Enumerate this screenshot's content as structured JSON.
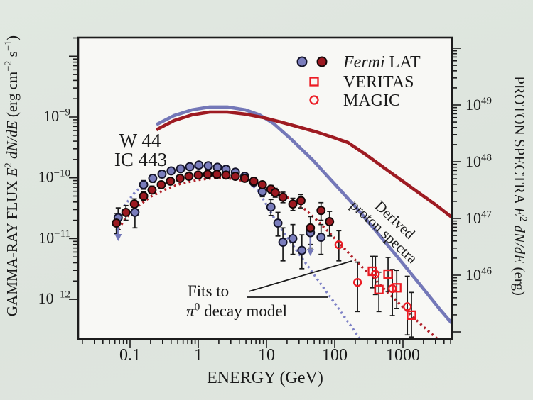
{
  "figure": {
    "kind": "scientific-spectra-figure",
    "colors": {
      "background": "#dee5de",
      "plot_background": "#f8f8f5",
      "frame": "#1c1c1c",
      "w44_blue": "#7478b8",
      "w44_blue_fill": "#7a7dbc",
      "w44_blue_text": "#6b70b2",
      "w44_dotted": "#7d81c6",
      "ic443_red": "#9e1b22",
      "ic443_red_fill": "#9c1920",
      "ic443_red_text": "#b2242b",
      "ic443_dotted": "#b01f28",
      "bright_red": "#ec1c24",
      "error_bar": "#1a1a1a"
    }
  },
  "axes": {
    "x": {
      "title": "ENERGY (GeV)",
      "scale": "log",
      "tick_labels": [
        "0.1",
        "1",
        "10",
        "100",
        "1000"
      ],
      "tick_values": [
        0.1,
        1,
        10,
        100,
        1000
      ],
      "range_gev": [
        0.017,
        5200
      ]
    },
    "y_left": {
      "title_segments": [
        {
          "t": "GAMMA-RAY FLUX "
        },
        {
          "t": "E",
          "i": true
        },
        {
          "t": "2",
          "sup": true
        },
        {
          "t": " "
        },
        {
          "t": "dN",
          "i": true
        },
        {
          "t": "/",
          "i": true
        },
        {
          "t": "dE",
          "i": true
        },
        {
          "t": " (erg cm"
        },
        {
          "t": "−2",
          "sup": true
        },
        {
          "t": " s"
        },
        {
          "t": "−1",
          "sup": true
        },
        {
          "t": ")"
        }
      ],
      "scale": "log",
      "ticks": [
        {
          "base": "10",
          "exp": "−9",
          "value": 1e-09
        },
        {
          "base": "10",
          "exp": "−10",
          "value": 1e-10
        },
        {
          "base": "10",
          "exp": "−11",
          "value": 1e-11
        },
        {
          "base": "10",
          "exp": "−12",
          "value": 1e-12
        }
      ]
    },
    "y_right": {
      "title_segments": [
        {
          "t": "PROTON SPECTRA "
        },
        {
          "t": "E",
          "i": true
        },
        {
          "t": "2",
          "sup": true
        },
        {
          "t": " "
        },
        {
          "t": "dN",
          "i": true
        },
        {
          "t": "/",
          "i": true
        },
        {
          "t": "dE",
          "i": true
        },
        {
          "t": " (erg)"
        }
      ],
      "scale": "log",
      "ticks": [
        {
          "base": "10",
          "exp": "49",
          "value": 1e+49
        },
        {
          "base": "10",
          "exp": "48",
          "value": 1e+48
        },
        {
          "base": "10",
          "exp": "47",
          "value": 1e+47
        },
        {
          "base": "10",
          "exp": "46",
          "value": 1e+46
        }
      ]
    }
  },
  "legend": {
    "items": [
      {
        "id": "fermi-lat",
        "marker": "two-filled-circles",
        "label_segments": [
          {
            "t": "Fermi",
            "i": true
          },
          {
            "t": " LAT"
          }
        ]
      },
      {
        "id": "veritas",
        "marker": "open-square",
        "label_segments": [
          {
            "t": "VERITAS"
          }
        ]
      },
      {
        "id": "magic",
        "marker": "open-circle",
        "label_segments": [
          {
            "t": "MAGIC"
          }
        ]
      }
    ]
  },
  "annotations": {
    "w44_label": "W 44",
    "ic443_label": "IC 443",
    "derived_lines": [
      "Derived",
      "proton spectra"
    ],
    "fits_line1": "Fits to",
    "fits_line2_segments": [
      {
        "t": "π",
        "i": true
      },
      {
        "t": "0",
        "sup": true
      },
      {
        "t": " decay model"
      }
    ]
  },
  "chart_data": {
    "type": "scatter+line",
    "x_axis": "ENERGY (GeV), log scale 0.1–1000",
    "y_left_axis": "Gamma-ray flux E^2 dN/dE (erg cm^-2 s^-1), log 1e-12–1e-9",
    "y_right_axis": "Proton spectra E^2 dN/dE (erg), log 1e46–1e49",
    "series": [
      {
        "name": "W 44 (Fermi LAT)",
        "type": "scatter",
        "marker": "filled-circle",
        "axis": "left",
        "points": [
          [
            0.067,
            2.2e-11,
            1.4e-11,
            3.2e-11,
            "arrow"
          ],
          [
            0.118,
            2.7e-11,
            1.5e-11,
            3.6e-11,
            ""
          ],
          [
            0.158,
            7.7e-11,
            6.5e-11,
            9e-11,
            ""
          ],
          [
            0.215,
            9.8e-11,
            8.4e-11,
            1.1e-10,
            ""
          ],
          [
            0.294,
            1.15e-10,
            1e-10,
            1.3e-10,
            ""
          ],
          [
            0.4,
            1.3e-10,
            1.15e-10,
            1.45e-10,
            ""
          ],
          [
            0.55,
            1.41e-10,
            1.28e-10,
            1.55e-10,
            ""
          ],
          [
            0.75,
            1.52e-10,
            1.4e-10,
            1.65e-10,
            ""
          ],
          [
            1.02,
            1.62e-10,
            1.5e-10,
            1.75e-10,
            ""
          ],
          [
            1.4,
            1.58e-10,
            1.45e-10,
            1.7e-10,
            ""
          ],
          [
            1.91,
            1.49e-10,
            1.37e-10,
            1.6e-10,
            ""
          ],
          [
            2.55,
            1.38e-10,
            1.26e-10,
            1.5e-10,
            ""
          ],
          [
            3.5,
            1.24e-10,
            1.12e-10,
            1.36e-10,
            ""
          ],
          [
            4.8,
            1.06e-10,
            9.5e-11,
            1.18e-10,
            ""
          ],
          [
            6.5,
            8.5e-11,
            7.4e-11,
            9.7e-11,
            ""
          ],
          [
            8.7,
            5.9e-11,
            4.9e-11,
            7e-11,
            ""
          ],
          [
            11.6,
            3.3e-11,
            2.4e-11,
            4.4e-11,
            ""
          ],
          [
            14.7,
            1.8e-11,
            1.1e-11,
            2.7e-11,
            ""
          ],
          [
            17.4,
            8.7e-12,
            4.3e-12,
            1.5e-11,
            ""
          ],
          [
            24.3,
            1e-11,
            5.5e-12,
            1.7e-11,
            ""
          ],
          [
            33,
            6.4e-12,
            3.2e-12,
            1.15e-11,
            ""
          ],
          [
            44,
            1.25e-11,
            7e-12,
            1.6e-11,
            "arrow"
          ],
          [
            63,
            1.05e-11,
            5.5e-12,
            1.7e-11,
            ""
          ]
        ]
      },
      {
        "name": "IC 443 (Fermi LAT)",
        "type": "scatter",
        "marker": "filled-circle",
        "axis": "left",
        "points": [
          [
            0.063,
            1.8e-11,
            1.2e-11,
            2.6e-11,
            ""
          ],
          [
            0.087,
            2.7e-11,
            2e-11,
            3.5e-11,
            ""
          ],
          [
            0.116,
            3.7e-11,
            3e-11,
            4.5e-11,
            ""
          ],
          [
            0.158,
            5e-11,
            4.2e-11,
            5.9e-11,
            ""
          ],
          [
            0.21,
            6.3e-11,
            5.5e-11,
            7.3e-11,
            ""
          ],
          [
            0.287,
            7.7e-11,
            6.8e-11,
            8.7e-11,
            ""
          ],
          [
            0.39,
            8.8e-11,
            7.9e-11,
            9.8e-11,
            ""
          ],
          [
            0.54,
            9.8e-11,
            8.8e-11,
            1.08e-10,
            ""
          ],
          [
            0.73,
            1.06e-10,
            9.6e-11,
            1.16e-10,
            ""
          ],
          [
            1.0,
            1.11e-10,
            1.01e-10,
            1.21e-10,
            ""
          ],
          [
            1.37,
            1.14e-10,
            1.04e-10,
            1.24e-10,
            ""
          ],
          [
            1.87,
            1.14e-10,
            1.04e-10,
            1.24e-10,
            ""
          ],
          [
            2.55,
            1.11e-10,
            1.01e-10,
            1.21e-10,
            ""
          ],
          [
            3.5,
            1.06e-10,
            9.6e-11,
            1.16e-10,
            ""
          ],
          [
            4.8,
            9.8e-11,
            8.8e-11,
            1.08e-10,
            ""
          ],
          [
            6.5,
            8.8e-11,
            7.8e-11,
            9.8e-11,
            ""
          ],
          [
            8.7,
            7.7e-11,
            6.7e-11,
            8.7e-11,
            ""
          ],
          [
            11.6,
            6.5e-11,
            5.6e-11,
            7.5e-11,
            ""
          ],
          [
            13.4,
            5.7e-11,
            4.8e-11,
            6.7e-11,
            ""
          ],
          [
            17.4,
            4.8e-11,
            3.9e-11,
            5.8e-11,
            ""
          ],
          [
            24.3,
            3.7e-11,
            2.9e-11,
            4.6e-11,
            ""
          ],
          [
            32,
            4.2e-11,
            3.2e-11,
            5.3e-11,
            ""
          ],
          [
            44,
            1.5e-11,
            8e-12,
            2.3e-11,
            ""
          ],
          [
            63,
            2.9e-11,
            2e-11,
            3.9e-11,
            ""
          ],
          [
            84,
            1.9e-11,
            1.1e-11,
            2.8e-11,
            ""
          ]
        ]
      },
      {
        "name": "IC 443 (VERITAS)",
        "type": "scatter",
        "marker": "open-square",
        "axis": "left",
        "points": [
          [
            357,
            2.9e-12,
            1.55e-12,
            5.1e-12,
            ""
          ],
          [
            444,
            1.45e-12,
            6.3e-13,
            2.8e-12,
            ""
          ],
          [
            605,
            2.6e-12,
            1.35e-12,
            4.9e-12,
            ""
          ],
          [
            810,
            1.55e-12,
            7.1e-13,
            3e-12,
            ""
          ],
          [
            1334,
            5.5e-13,
            2.4e-13,
            1.3e-12,
            ""
          ]
        ]
      },
      {
        "name": "IC 443 (MAGIC)",
        "type": "scatter",
        "marker": "open-circle",
        "axis": "left",
        "points": [
          [
            115,
            7.9e-12,
            4.3e-12,
            1.35e-11,
            ""
          ],
          [
            216,
            1.9e-12,
            6.3e-13,
            4.1e-12,
            ""
          ],
          [
            395,
            2.6e-12,
            1.2e-12,
            5.1e-12,
            ""
          ],
          [
            700,
            1.5e-12,
            5.4e-13,
            3.1e-12,
            ""
          ],
          [
            1160,
            7.6e-13,
            2.6e-13,
            2.4e-12,
            ""
          ]
        ]
      },
      {
        "name": "W 44 pi0-decay fit",
        "type": "line",
        "style": "dotted",
        "axis": "left",
        "points": [
          [
            0.067,
            2e-11
          ],
          [
            0.0845,
            3.6e-11
          ],
          [
            0.118,
            5.8e-11
          ],
          [
            0.178,
            8.5e-11
          ],
          [
            0.287,
            1.12e-10
          ],
          [
            0.487,
            1.35e-10
          ],
          [
            0.845,
            1.5e-10
          ],
          [
            1.5,
            1.58e-10
          ],
          [
            2.37,
            1.42e-10
          ],
          [
            3.65,
            1.17e-10
          ],
          [
            5.5,
            8.7e-11
          ],
          [
            7.9,
            5.7e-11
          ],
          [
            10.7,
            3.15e-11
          ],
          [
            14.3,
            1.79e-11
          ],
          [
            20.5,
            1.01e-11
          ],
          [
            29.5,
            5.75e-12
          ],
          [
            42.4,
            3.27e-12
          ],
          [
            61,
            1.86e-12
          ],
          [
            87.8,
            1.06e-12
          ],
          [
            126,
            6e-13
          ],
          [
            181,
            3.4e-13
          ],
          [
            236,
            2.2e-13
          ]
        ]
      },
      {
        "name": "IC 443 pi0-decay fit",
        "type": "line",
        "style": "dotted",
        "axis": "left",
        "points": [
          [
            0.067,
            1.45e-11
          ],
          [
            0.091,
            2.3e-11
          ],
          [
            0.13,
            3.4e-11
          ],
          [
            0.2,
            4.9e-11
          ],
          [
            0.324,
            6.4e-11
          ],
          [
            0.55,
            8e-11
          ],
          [
            0.976,
            9.2e-11
          ],
          [
            1.74,
            1e-10
          ],
          [
            3.09,
            9.7e-11
          ],
          [
            5.24,
            8.7e-11
          ],
          [
            8.9,
            7.4e-11
          ],
          [
            14.3,
            5.9e-11
          ],
          [
            23.2,
            4.35e-11
          ],
          [
            35.7,
            3.1e-11
          ],
          [
            52.5,
            2.1e-11
          ],
          [
            77,
            1.37e-11
          ],
          [
            113,
            8.7e-12
          ],
          [
            167,
            5.5e-12
          ],
          [
            245,
            3.5e-12
          ],
          [
            360,
            2.3e-12
          ],
          [
            525,
            1.5e-12
          ],
          [
            770,
            9.9e-13
          ],
          [
            1130,
            6.5e-13
          ],
          [
            1660,
            4.3e-13
          ],
          [
            2440,
            2.9e-13
          ],
          [
            3260,
            2.2e-13
          ]
        ]
      },
      {
        "name": "W 44 derived proton spectrum",
        "type": "line",
        "style": "solid",
        "axis": "right",
        "points": [
          [
            0.243,
            4.5e+48
          ],
          [
            0.44,
            6.5e+48
          ],
          [
            0.81,
            8.2e+48
          ],
          [
            1.47,
            9.2e+48
          ],
          [
            2.67,
            9.2e+48
          ],
          [
            4.9,
            8.2e+48
          ],
          [
            7.9,
            6.7e+48
          ],
          [
            12.7,
            4.7e+48
          ],
          [
            23,
            2.5e+48
          ],
          [
            48,
            1.06e+48
          ],
          [
            97,
            4.2e+47
          ],
          [
            200,
            1.62e+47
          ],
          [
            406,
            5.9e+46
          ],
          [
            830,
            2.1e+46
          ],
          [
            1700,
            7.3e+45
          ],
          [
            3480,
            2.5e+45
          ],
          [
            5130,
            1.44e+45
          ]
        ]
      },
      {
        "name": "IC 443 derived proton spectrum",
        "type": "line",
        "style": "solid",
        "axis": "right",
        "points": [
          [
            0.243,
            3.65e+48
          ],
          [
            0.44,
            5.3e+48
          ],
          [
            0.81,
            6.7e+48
          ],
          [
            1.47,
            7.5e+48
          ],
          [
            2.67,
            7.5e+48
          ],
          [
            4.9,
            6.9e+48
          ],
          [
            8.9,
            6e+48
          ],
          [
            16.2,
            5e+48
          ],
          [
            29.5,
            4.1e+48
          ],
          [
            53.7,
            3.35e+48
          ],
          [
            97,
            2.66e+48
          ],
          [
            157,
            2.17e+48
          ],
          [
            287,
            1.33e+48
          ],
          [
            522,
            7.9e+47
          ],
          [
            950,
            4.7e+47
          ],
          [
            1730,
            2.8e+47
          ],
          [
            3150,
            1.68e+47
          ],
          [
            5130,
            1.06e+47
          ]
        ]
      }
    ]
  }
}
